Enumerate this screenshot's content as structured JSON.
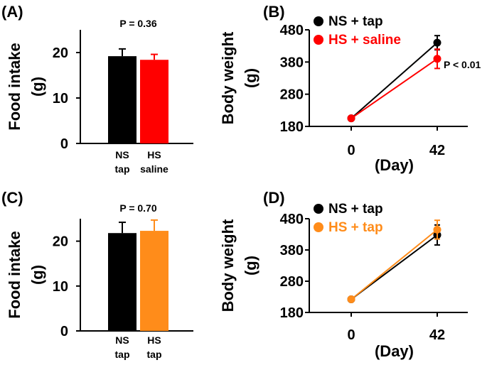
{
  "chart_data": [
    {
      "panel": "(A)",
      "type": "bar",
      "ylabel_line1": "Food intake",
      "ylabel_line2": "(g)",
      "ylim": [
        0,
        25
      ],
      "yticks": [
        0,
        10,
        20
      ],
      "annotation": "P = 0.36",
      "bars": [
        {
          "label_line1": "NS",
          "label_line2": "tap",
          "value": 19.2,
          "error": 1.6,
          "color": "#000000",
          "label_color": "#000000"
        },
        {
          "label_line1": "HS",
          "label_line2": "saline",
          "value": 18.4,
          "error": 1.2,
          "color": "#ff0000",
          "label_color": "#ff0000"
        }
      ]
    },
    {
      "panel": "(B)",
      "type": "line",
      "ylabel_line1": "Body weight",
      "ylabel_line2": "(g)",
      "xlabel": "(Day)",
      "x": [
        "0",
        "42"
      ],
      "ylim": [
        180,
        480
      ],
      "yticks": [
        180,
        280,
        380,
        480
      ],
      "annotation": "P < 0.01",
      "series": [
        {
          "name": "NS + tap",
          "values": [
            205,
            440
          ],
          "errors": [
            5,
            22
          ],
          "color": "#000000"
        },
        {
          "name": "HS + saline",
          "values": [
            205,
            390
          ],
          "errors": [
            5,
            30
          ],
          "color": "#ff0000"
        }
      ]
    },
    {
      "panel": "(C)",
      "type": "bar",
      "ylabel_line1": "Food intake",
      "ylabel_line2": "(g)",
      "ylim": [
        0,
        25
      ],
      "yticks": [
        0,
        10,
        20
      ],
      "annotation": "P = 0.70",
      "bars": [
        {
          "label_line1": "NS",
          "label_line2": "tap",
          "value": 21.8,
          "error": 2.4,
          "color": "#000000",
          "label_color": "#000000"
        },
        {
          "label_line1": "HS",
          "label_line2": "tap",
          "value": 22.3,
          "error": 2.4,
          "color": "#ff8c1a",
          "label_color": "#ff8c1a"
        }
      ]
    },
    {
      "panel": "(D)",
      "type": "line",
      "ylabel_line1": "Body weight",
      "ylabel_line2": "(g)",
      "xlabel": "(Day)",
      "x": [
        "0",
        "42"
      ],
      "ylim": [
        180,
        480
      ],
      "yticks": [
        180,
        280,
        380,
        480
      ],
      "series": [
        {
          "name": "NS + tap",
          "values": [
            222,
            428
          ],
          "errors": [
            4,
            32
          ],
          "color": "#000000"
        },
        {
          "name": "HS + tap",
          "values": [
            222,
            445
          ],
          "errors": [
            4,
            30
          ],
          "color": "#ff8c1a"
        }
      ]
    }
  ]
}
